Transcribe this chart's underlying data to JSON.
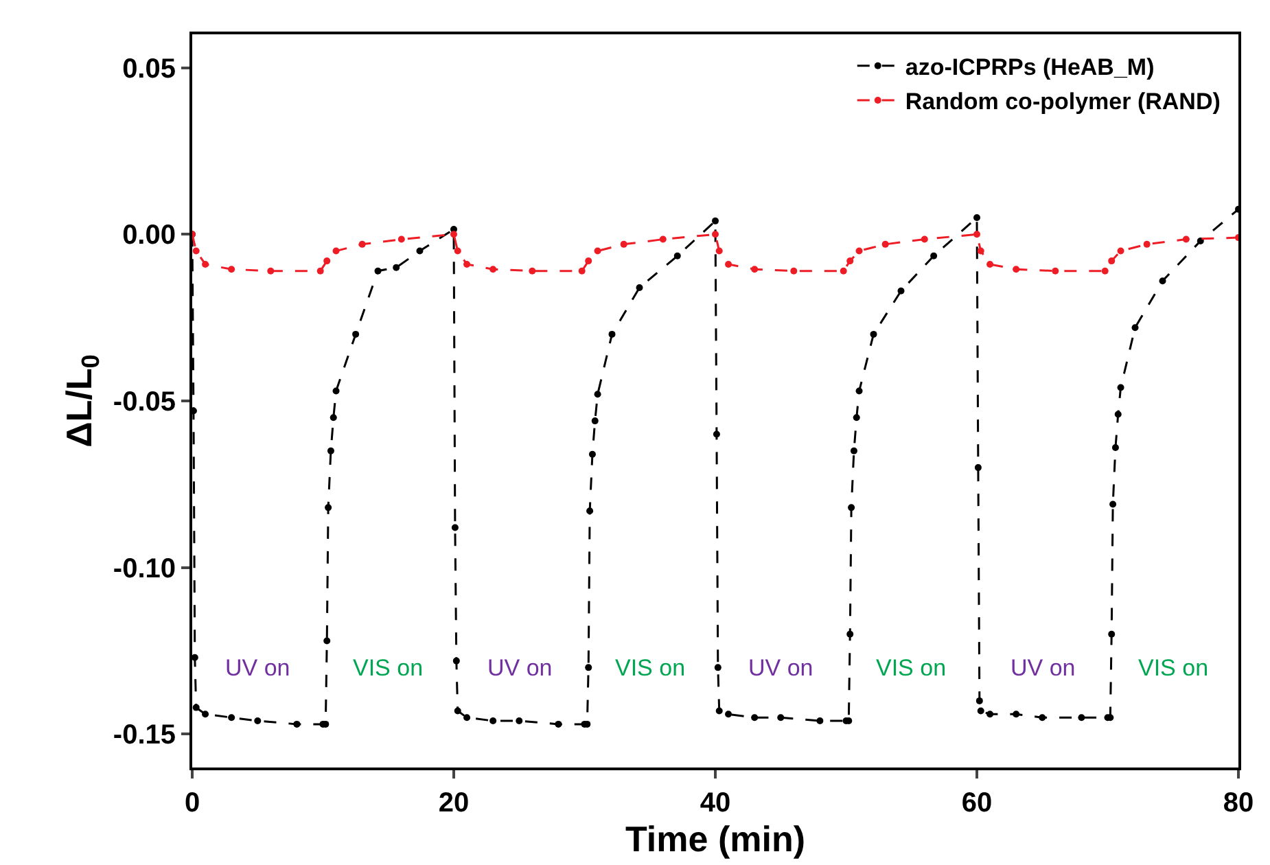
{
  "chart_data": {
    "type": "line",
    "xlabel": "Time (min)",
    "ylabel": "ΔL/L$_{0}$",
    "xlim": [
      0,
      80
    ],
    "xticks": [
      0,
      20,
      40,
      60,
      80
    ],
    "ylim": [
      -0.16,
      0.06
    ],
    "yticks": [
      {
        "value": 0.05,
        "label": "0.05"
      },
      {
        "value": 0,
        "label": "0.00"
      },
      {
        "value": -0.05,
        "label": "-0.05"
      },
      {
        "value": -0.1,
        "label": "-0.10"
      },
      {
        "value": -0.15,
        "label": "-0.15"
      }
    ],
    "legend": "top right",
    "marker": "circle",
    "line_style": "dashed",
    "series": [
      {
        "name": "azo-ICPRPs (HeAB_M)",
        "color": "#000000",
        "x": [
          0,
          0.1,
          0.2,
          0.3,
          1,
          3,
          5,
          8,
          10,
          10.2,
          10.3,
          10.4,
          10.6,
          10.8,
          11,
          12.5,
          14.2,
          15.6,
          17.4,
          20,
          20.1,
          20.2,
          20.3,
          21,
          23,
          25,
          28,
          30,
          30.2,
          30.3,
          30.4,
          30.6,
          30.8,
          31,
          32.1,
          34.2,
          37.1,
          40,
          40.1,
          40.2,
          40.3,
          41,
          43,
          45,
          48,
          50,
          50.2,
          50.3,
          50.4,
          50.6,
          50.8,
          51,
          52.1,
          54.2,
          56.7,
          60,
          60.1,
          60.2,
          60.3,
          61,
          63,
          65,
          68,
          70,
          70.2,
          70.3,
          70.4,
          70.6,
          70.8,
          71,
          72.1,
          74.2,
          77.1,
          80
        ],
        "values": [
          0,
          -0.053,
          -0.127,
          -0.142,
          -0.144,
          -0.145,
          -0.146,
          -0.147,
          -0.147,
          -0.147,
          -0.122,
          -0.082,
          -0.065,
          -0.055,
          -0.047,
          -0.03,
          -0.011,
          -0.01,
          -0.005,
          0.0015,
          -0.088,
          -0.128,
          -0.143,
          -0.145,
          -0.146,
          -0.146,
          -0.147,
          -0.147,
          -0.147,
          -0.13,
          -0.083,
          -0.066,
          -0.056,
          -0.048,
          -0.03,
          -0.016,
          -0.0065,
          0.004,
          -0.06,
          -0.13,
          -0.143,
          -0.144,
          -0.145,
          -0.145,
          -0.146,
          -0.146,
          -0.146,
          -0.12,
          -0.082,
          -0.065,
          -0.055,
          -0.047,
          -0.03,
          -0.017,
          -0.0065,
          0.005,
          -0.07,
          -0.14,
          -0.143,
          -0.144,
          -0.144,
          -0.145,
          -0.145,
          -0.145,
          -0.145,
          -0.12,
          -0.081,
          -0.064,
          -0.054,
          -0.046,
          -0.028,
          -0.014,
          -0.002,
          0.0075
        ]
      },
      {
        "name": "Random co-polymer (RAND)",
        "color": "#ee1c25",
        "x": [
          0,
          0.3,
          1,
          3,
          6,
          9.8,
          10.3,
          11,
          13,
          16,
          20,
          20.3,
          21,
          23,
          26,
          29.8,
          30.3,
          31,
          33,
          36,
          40,
          40.3,
          41,
          43,
          46,
          49.8,
          50.3,
          51,
          53,
          56,
          60,
          60.3,
          61,
          63,
          66,
          69.8,
          70.3,
          71,
          73,
          76,
          80
        ],
        "values": [
          0,
          -0.005,
          -0.009,
          -0.0105,
          -0.011,
          -0.011,
          -0.008,
          -0.005,
          -0.003,
          -0.0015,
          0,
          -0.005,
          -0.009,
          -0.0105,
          -0.011,
          -0.011,
          -0.008,
          -0.005,
          -0.003,
          -0.0015,
          0,
          -0.005,
          -0.009,
          -0.0105,
          -0.011,
          -0.011,
          -0.008,
          -0.005,
          -0.003,
          -0.0015,
          0,
          -0.005,
          -0.009,
          -0.0105,
          -0.011,
          -0.011,
          -0.008,
          -0.005,
          -0.003,
          -0.0015,
          -0.001
        ]
      }
    ],
    "annotations": [
      "UV on",
      "VIS on",
      "UV on",
      "VIS on",
      "UV on",
      "VIS on",
      "UV on",
      "VIS on"
    ]
  }
}
